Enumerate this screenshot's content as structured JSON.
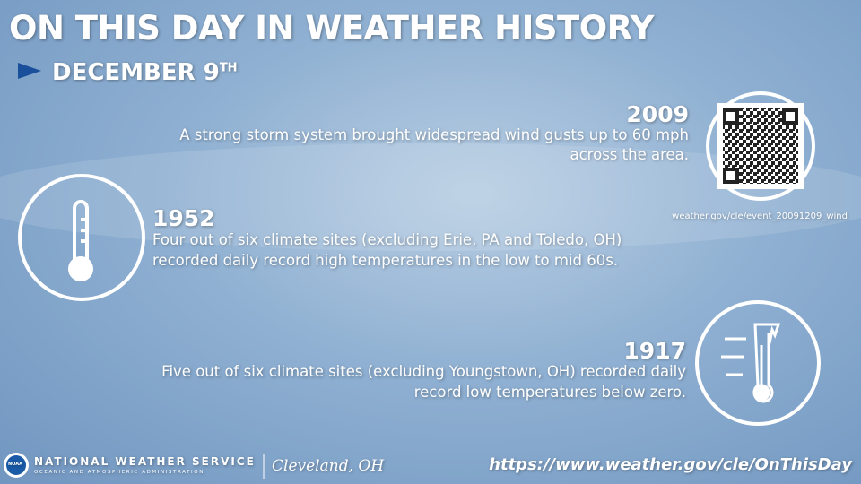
{
  "header": {
    "title": "ON THIS DAY IN WEATHER HISTORY",
    "date": "DECEMBER 9",
    "date_suffix": "TH"
  },
  "events": [
    {
      "year": "2009",
      "text_lines": [
        "A strong storm system brought widespread wind gusts up to 60 mph",
        "across the area."
      ],
      "link": "weather.gov/cle/event_20091209_wind"
    },
    {
      "year": "1952",
      "text_lines": [
        "Four out of six climate sites (excluding Erie, PA and Toledo, OH)",
        "recorded daily record high temperatures in the low to mid 60s."
      ]
    },
    {
      "year": "1917",
      "text_lines": [
        "Five out of six climate sites (excluding Youngstown, OH) recorded daily",
        "record low temperatures below zero."
      ]
    }
  ],
  "footer": {
    "org": "NATIONAL WEATHER SERVICE",
    "org_sub": "OCEANIC AND ATMOSPHERIC ADMINISTRATION",
    "logo": "NOAA",
    "office": "Cleveland, OH",
    "url": "https://www.weather.gov/cle/OnThisDay"
  }
}
